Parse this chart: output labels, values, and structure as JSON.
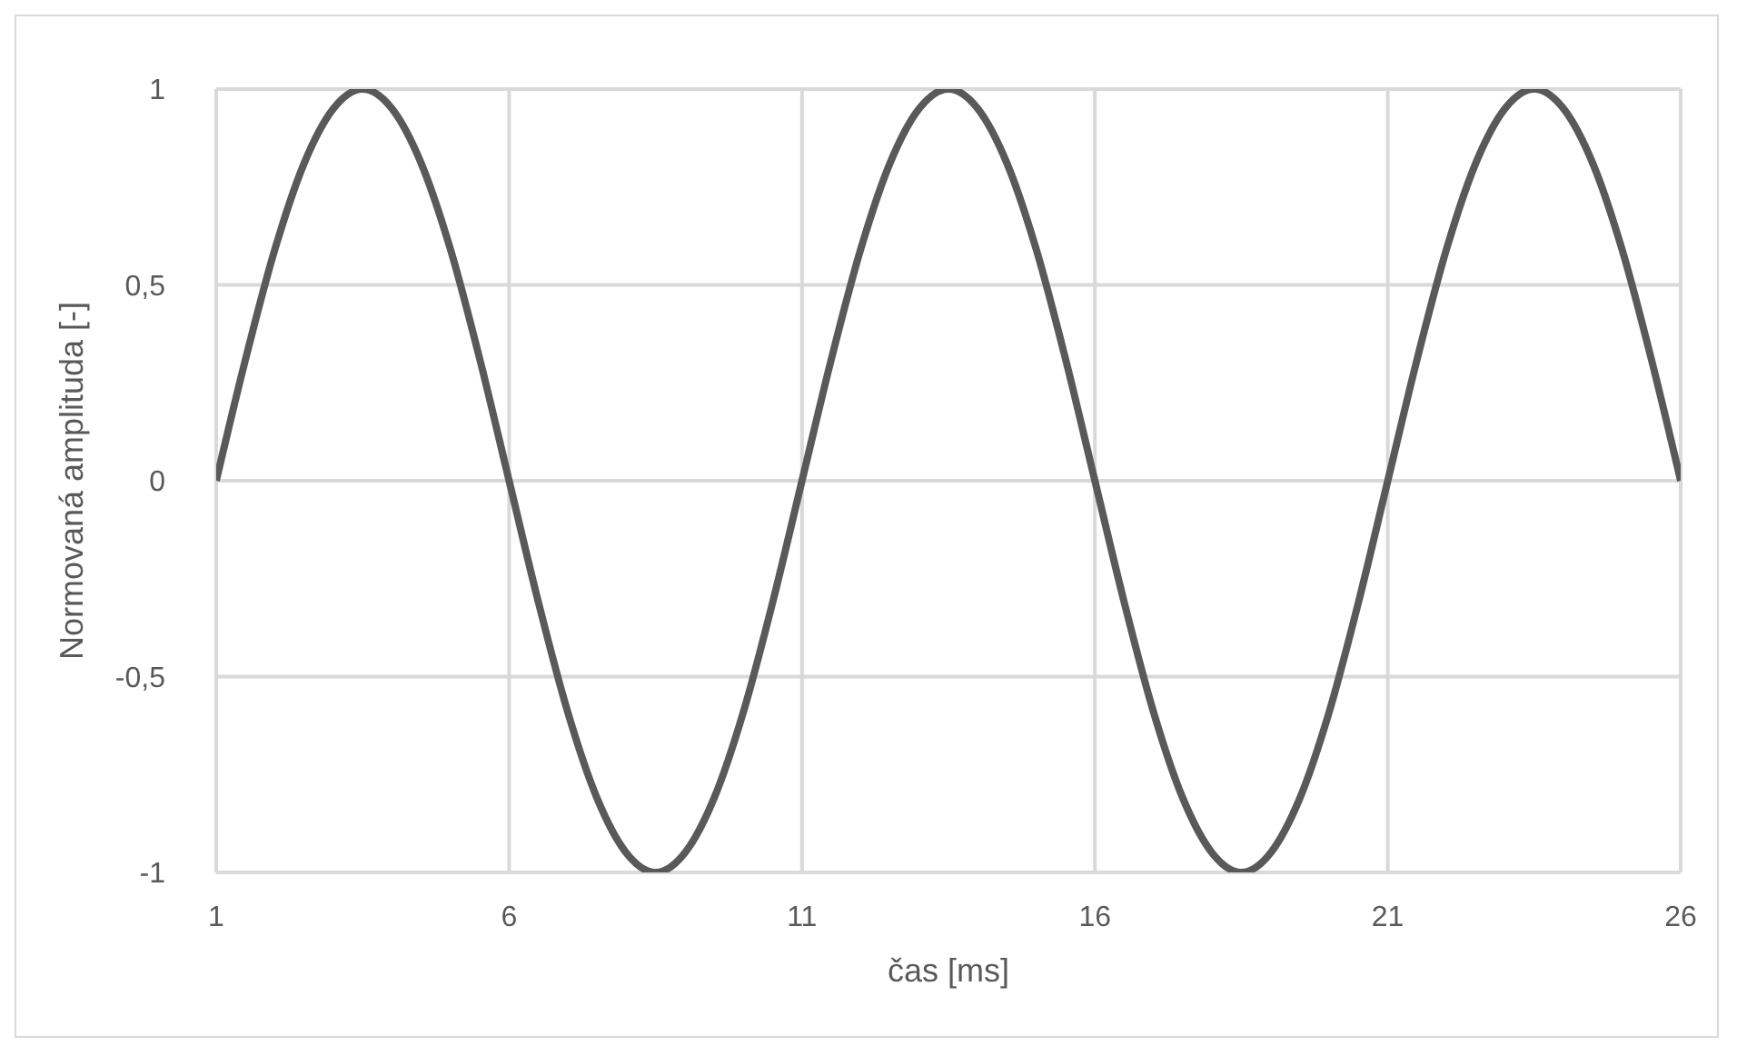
{
  "chart_data": {
    "type": "line",
    "xlabel": "čas [ms]",
    "ylabel": "Normovaná amplituda [-]",
    "x": [
      1,
      1.5,
      2,
      2.5,
      3,
      3.5,
      4,
      4.5,
      5,
      5.5,
      6,
      6.5,
      7,
      7.5,
      8,
      8.5,
      9,
      9.5,
      10,
      10.5,
      11,
      11.5,
      12,
      12.5,
      13,
      13.5,
      14,
      14.5,
      15,
      15.5,
      16,
      16.5,
      17,
      17.5,
      18,
      18.5,
      19,
      19.5,
      20,
      20.5,
      21,
      21.5,
      22,
      22.5,
      23,
      23.5,
      24,
      24.5,
      25,
      25.5,
      26
    ],
    "series": [
      {
        "color": "#595959",
        "values": [
          0,
          0.31,
          0.59,
          0.81,
          0.95,
          1,
          0.95,
          0.81,
          0.59,
          0.31,
          0,
          -0.31,
          -0.59,
          -0.81,
          -0.95,
          -1,
          -0.95,
          -0.81,
          -0.59,
          -0.31,
          0,
          0.31,
          0.59,
          0.81,
          0.95,
          1,
          0.95,
          0.81,
          0.59,
          0.31,
          0,
          -0.31,
          -0.59,
          -0.81,
          -0.95,
          -1,
          -0.95,
          -0.81,
          -0.59,
          -0.31,
          0,
          0.31,
          0.59,
          0.81,
          0.95,
          1,
          0.95,
          0.81,
          0.59,
          0.31,
          0
        ]
      }
    ],
    "xlim": [
      1,
      26
    ],
    "xticks": [
      1,
      6,
      11,
      16,
      21,
      26
    ],
    "ylim": [
      -1,
      1
    ],
    "yticks": [
      -1,
      {
        "value": -0.5,
        "label": "-0,5"
      },
      0,
      {
        "value": 0.5,
        "label": "0,5"
      },
      1
    ],
    "grid": true,
    "marker": "none",
    "line_style": "solid"
  }
}
